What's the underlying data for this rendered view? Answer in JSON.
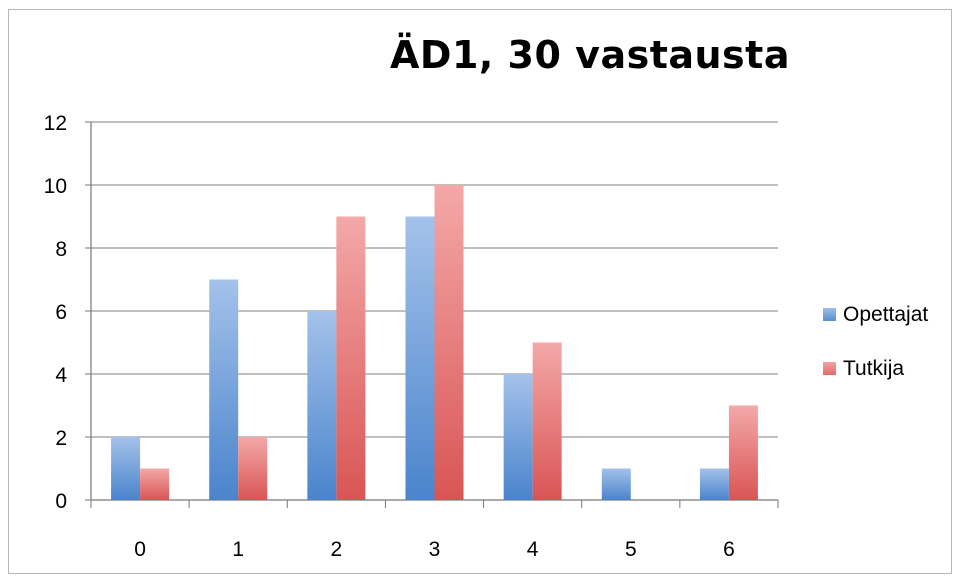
{
  "chart_data": {
    "type": "bar",
    "title": "ÄD1, 30 vastausta",
    "xlabel": "",
    "ylabel": "",
    "categories": [
      "0",
      "1",
      "2",
      "3",
      "4",
      "5",
      "6"
    ],
    "series": [
      {
        "name": "Opettajat",
        "values": [
          2,
          7,
          6,
          9,
          4,
          1,
          1
        ],
        "color": "#5b8fd0"
      },
      {
        "name": "Tutkija",
        "values": [
          1,
          2,
          9,
          10,
          5,
          0,
          3
        ],
        "color": "#e36b6b"
      }
    ],
    "ylim": [
      0,
      12
    ],
    "yticks": [
      "0",
      "2",
      "4",
      "6",
      "8",
      "10",
      "12"
    ],
    "grid": true,
    "legend_position": "right"
  }
}
